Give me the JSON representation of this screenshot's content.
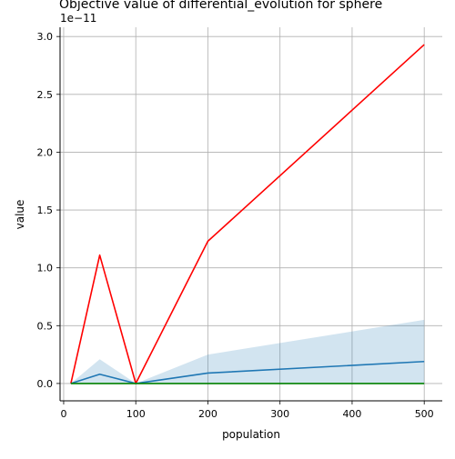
{
  "chart_data": {
    "type": "line",
    "title": "Objective value of differential_evolution for sphere",
    "xlabel": "population",
    "ylabel": "value",
    "y_scale_label": "1e−11",
    "x": [
      10,
      50,
      100,
      200,
      500
    ],
    "xlim": [
      -5,
      525
    ],
    "ylim": [
      -0.15,
      3.08
    ],
    "y_multiplier": "1e-11",
    "xticks": [
      0,
      100,
      200,
      300,
      400,
      500
    ],
    "xtick_labels": [
      "0",
      "100",
      "200",
      "300",
      "400",
      "500"
    ],
    "yticks": [
      0.0,
      0.5,
      1.0,
      1.5,
      2.0,
      2.5,
      3.0
    ],
    "ytick_labels": [
      "0.0",
      "0.5",
      "1.0",
      "1.5",
      "2.0",
      "2.5",
      "3.0"
    ],
    "grid": true,
    "series": [
      {
        "color": "#ff0000",
        "values": [
          0.0,
          1.11,
          0.0,
          1.23,
          2.93
        ]
      },
      {
        "color": "#1f77b4",
        "values": [
          0.0,
          0.08,
          0.0,
          0.09,
          0.19
        ],
        "band_upper": [
          0.0,
          0.21,
          0.0,
          0.25,
          0.55
        ],
        "band_lower": [
          0.0,
          0.0,
          0.0,
          0.0,
          0.0
        ],
        "band_color": "#1f77b4"
      },
      {
        "color": "#008000",
        "values": [
          0.0,
          0.0,
          0.0,
          0.0,
          0.0
        ]
      }
    ]
  }
}
